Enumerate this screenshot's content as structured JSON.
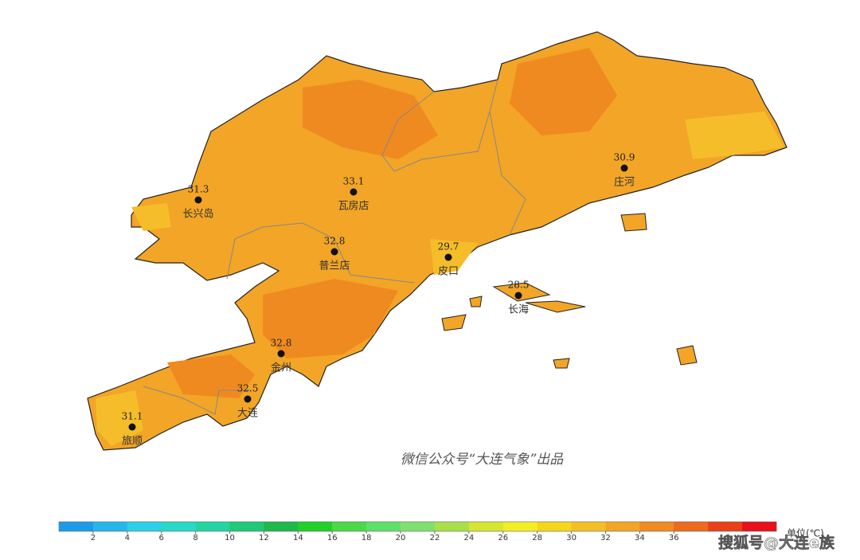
{
  "map": {
    "credit": "微信公众号“大连气象”出品",
    "stations": [
      {
        "name": "长兴岛",
        "value": "31.3"
      },
      {
        "name": "瓦房店",
        "value": "33.1"
      },
      {
        "name": "普兰店",
        "value": "32.8"
      },
      {
        "name": "皮口",
        "value": "29.7"
      },
      {
        "name": "庄河",
        "value": "30.9"
      },
      {
        "name": "长海",
        "value": "28.5"
      },
      {
        "name": "金州",
        "value": "32.8"
      },
      {
        "name": "大连",
        "value": "32.5"
      },
      {
        "name": "旅顺",
        "value": "31.1"
      }
    ],
    "colorbar": {
      "unit": "单位(℃)",
      "ticks": [
        2,
        4,
        6,
        8,
        10,
        12,
        14,
        16,
        18,
        20,
        22,
        24,
        26,
        28,
        30,
        32,
        34,
        36
      ],
      "colors": [
        "#1e9be8",
        "#27b6ec",
        "#2cd0e8",
        "#2ad8c8",
        "#25d4a0",
        "#20c878",
        "#1fb84a",
        "#22d02a",
        "#4bd94a",
        "#5ee06a",
        "#7fe070",
        "#a9e04a",
        "#d4e633",
        "#f2ee25",
        "#f6d51e",
        "#f4bf26",
        "#f2a527",
        "#f08a22",
        "#ee6a1e",
        "#e84018",
        "#e8101a"
      ]
    },
    "watermark": "搜狐号@大连e族"
  }
}
